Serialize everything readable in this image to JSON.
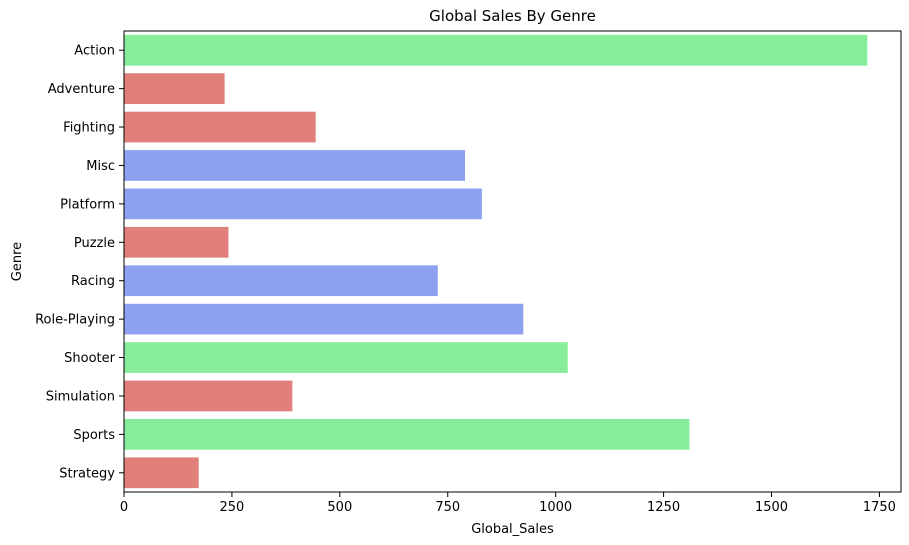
{
  "chart_data": {
    "type": "bar",
    "orientation": "horizontal",
    "title": "Global Sales By Genre",
    "xlabel": "Global_Sales",
    "ylabel": "Genre",
    "xlim": [
      0,
      1800
    ],
    "xticks": [
      0,
      250,
      500,
      750,
      1000,
      1250,
      1500,
      1750
    ],
    "grid": false,
    "categories": [
      "Action",
      "Adventure",
      "Fighting",
      "Misc",
      "Platform",
      "Puzzle",
      "Racing",
      "Role-Playing",
      "Shooter",
      "Simulation",
      "Sports",
      "Strategy"
    ],
    "values": [
      1722,
      233,
      444,
      790,
      829,
      242,
      727,
      925,
      1028,
      390,
      1310,
      173
    ],
    "colors": [
      "#87ED9A",
      "#E17F7A",
      "#E17F7A",
      "#8EA1F0",
      "#8EA1F0",
      "#E17F7A",
      "#8EA1F0",
      "#8EA1F0",
      "#87ED9A",
      "#E17F7A",
      "#87ED9A",
      "#E17F7A"
    ]
  }
}
